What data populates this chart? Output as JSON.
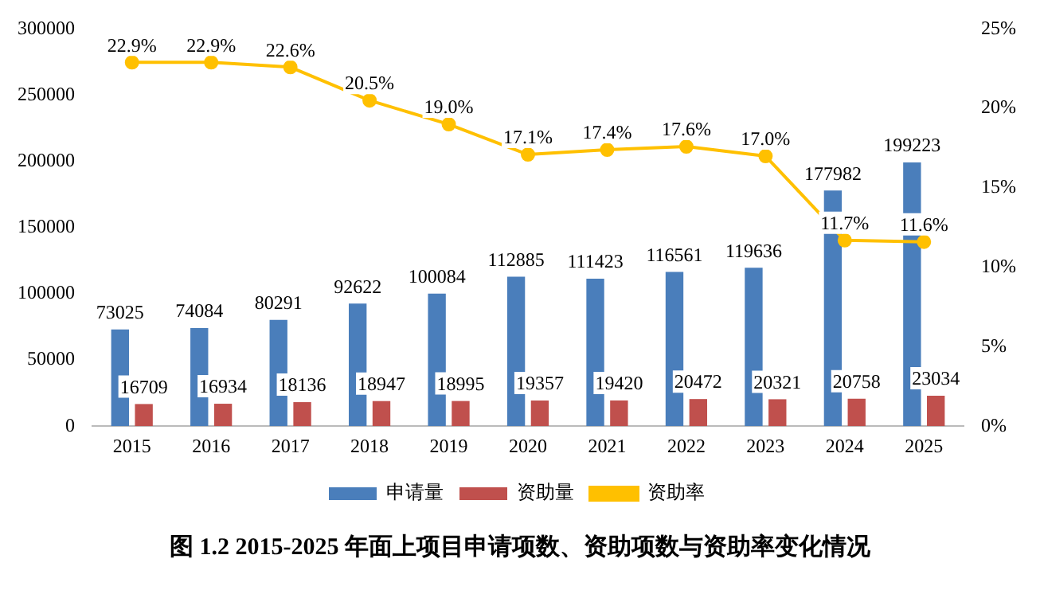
{
  "chart_data": {
    "type": "bar",
    "title": "图 1.2 2015-2025 年面上项目申请项数、资助项数与资助率变化情况",
    "categories": [
      "2015",
      "2016",
      "2017",
      "2018",
      "2019",
      "2020",
      "2021",
      "2022",
      "2023",
      "2024",
      "2025"
    ],
    "series": [
      {
        "name": "申请量",
        "color": "#4a7ebb",
        "values": [
          73025,
          74084,
          80291,
          92622,
          100084,
          112885,
          111423,
          116561,
          119636,
          177982,
          199223
        ],
        "value_labels": [
          "73025",
          "74084",
          "80291",
          "92622",
          "100084",
          "112885",
          "111423",
          "116561",
          "119636",
          "177982",
          "199223"
        ]
      },
      {
        "name": "资助量",
        "color": "#c0504d",
        "values": [
          16709,
          16934,
          18136,
          18947,
          18995,
          19357,
          19420,
          20472,
          20321,
          20758,
          23034
        ],
        "value_labels": [
          "16709",
          "16934",
          "18136",
          "18947",
          "18995",
          "19357",
          "19420",
          "20472",
          "20321",
          "20758",
          "23034"
        ]
      },
      {
        "name": "资助率",
        "type": "line",
        "axis": "y2",
        "color": "#ffc000",
        "marker": "circle",
        "values": [
          22.9,
          22.9,
          22.6,
          20.5,
          19.0,
          17.1,
          17.4,
          17.6,
          17.0,
          11.7,
          11.6
        ],
        "value_labels": [
          "22.9%",
          "22.9%",
          "22.6%",
          "20.5%",
          "19.0%",
          "17.1%",
          "17.4%",
          "17.6%",
          "17.0%",
          "11.7%",
          "11.6%"
        ]
      }
    ],
    "ylim": [
      0,
      300000
    ],
    "yticks": [
      0,
      50000,
      100000,
      150000,
      200000,
      250000,
      300000
    ],
    "y2lim": [
      0,
      25
    ],
    "y2ticks": [
      {
        "value": 0,
        "label": "0%"
      },
      {
        "value": 5,
        "label": "5%"
      },
      {
        "value": 10,
        "label": "10%"
      },
      {
        "value": 15,
        "label": "15%"
      },
      {
        "value": 20,
        "label": "20%"
      },
      {
        "value": 25,
        "label": "25%"
      }
    ],
    "grid": false,
    "legend": "bottom"
  }
}
